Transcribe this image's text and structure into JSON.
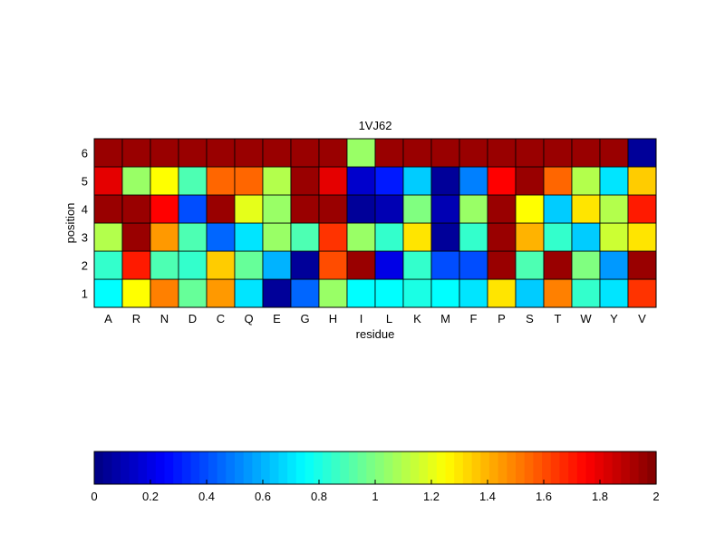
{
  "chart_data": {
    "type": "heatmap",
    "title": "1VJ62",
    "xlabel": "residue",
    "ylabel": "position",
    "x_categories": [
      "A",
      "R",
      "N",
      "D",
      "C",
      "Q",
      "E",
      "G",
      "H",
      "I",
      "L",
      "K",
      "M",
      "F",
      "P",
      "S",
      "T",
      "W",
      "Y",
      "V"
    ],
    "y_categories": [
      "1",
      "2",
      "3",
      "4",
      "5",
      "6"
    ],
    "values": [
      [
        0.75,
        1.25,
        1.5,
        0.95,
        1.45,
        0.7,
        0.05,
        0.45,
        1.05,
        0.75,
        0.75,
        0.8,
        0.75,
        0.7,
        1.3,
        0.65,
        1.5,
        0.85,
        0.7,
        1.65
      ],
      [
        0.85,
        1.7,
        0.9,
        0.85,
        1.35,
        0.95,
        0.6,
        0.05,
        1.6,
        1.95,
        0.2,
        0.85,
        0.4,
        0.4,
        1.95,
        0.9,
        1.95,
        1.0,
        0.55,
        1.95
      ],
      [
        1.1,
        1.95,
        1.45,
        0.9,
        0.45,
        0.7,
        1.05,
        0.9,
        1.65,
        1.05,
        0.85,
        1.3,
        0.05,
        0.85,
        1.95,
        1.4,
        0.85,
        0.65,
        1.15,
        1.3
      ],
      [
        1.95,
        1.95,
        1.75,
        0.4,
        1.95,
        1.2,
        1.05,
        1.95,
        1.95,
        0.05,
        0.1,
        1.0,
        0.1,
        1.05,
        1.95,
        1.25,
        0.65,
        1.3,
        1.1,
        1.7
      ],
      [
        1.8,
        1.05,
        1.25,
        0.9,
        1.55,
        1.55,
        1.1,
        1.95,
        1.8,
        0.15,
        0.3,
        0.65,
        0.05,
        0.5,
        1.75,
        1.95,
        1.55,
        1.1,
        0.7,
        1.35
      ],
      [
        1.95,
        1.95,
        1.95,
        1.95,
        1.95,
        1.95,
        1.95,
        1.95,
        1.95,
        1.05,
        1.95,
        1.95,
        1.95,
        1.95,
        1.95,
        1.95,
        1.95,
        1.95,
        1.95,
        0.05
      ]
    ],
    "colorbar": {
      "min": 0,
      "max": 2,
      "ticks": [
        "0",
        "0.2",
        "0.4",
        "0.6",
        "0.8",
        "1",
        "1.2",
        "1.4",
        "1.6",
        "1.8",
        "2"
      ],
      "colormap": "jet",
      "orientation": "horizontal",
      "placement": "bottom"
    },
    "grid": false,
    "legend": "none"
  }
}
